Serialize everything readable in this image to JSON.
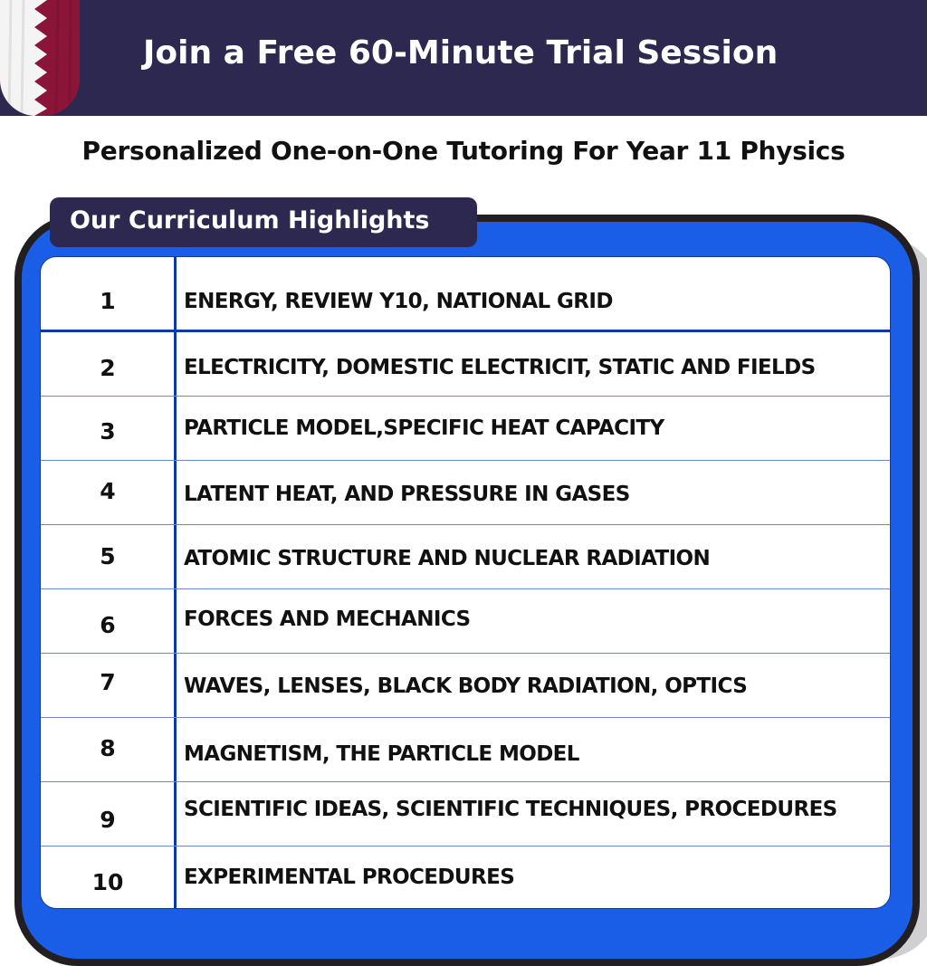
{
  "header": {
    "title": "Join a Free 60-Minute Trial Session",
    "flag_colors": [
      "#ffffff",
      "#8a1538"
    ]
  },
  "subtitle": "Personalized One-on-One Tutoring For Year 11 Physics",
  "section_tab": "Our Curriculum Highlights",
  "colors": {
    "header_bg": "#2c2850",
    "frame_blue": "#1a5ee8",
    "line": "#0d3aa0"
  },
  "rows": [
    {
      "num": "1",
      "topic": "ENERGY, REVIEW Y10, NATIONAL GRID"
    },
    {
      "num": "2",
      "topic": "ELECTRICITY, DOMESTIC ELECTRICIT, STATIC AND FIELDS"
    },
    {
      "num": "3",
      "topic": "PARTICLE MODEL,SPECIFIC HEAT CAPACITY"
    },
    {
      "num": "4",
      "topic": "LATENT HEAT, AND PRESSURE IN GASES"
    },
    {
      "num": "5",
      "topic": "ATOMIC STRUCTURE AND NUCLEAR RADIATION"
    },
    {
      "num": "6",
      "topic": "FORCES AND MECHANICS"
    },
    {
      "num": "7",
      "topic": "WAVES,  LENSES, BLACK BODY RADIATION, OPTICS"
    },
    {
      "num": "8",
      "topic": "MAGNETISM, THE PARTICLE MODEL"
    },
    {
      "num": "9",
      "topic": "SCIENTIFIC IDEAS, SCIENTIFIC TECHNIQUES, PROCEDURES"
    },
    {
      "num": "10",
      "topic": "EXPERIMENTAL PROCEDURES"
    }
  ]
}
